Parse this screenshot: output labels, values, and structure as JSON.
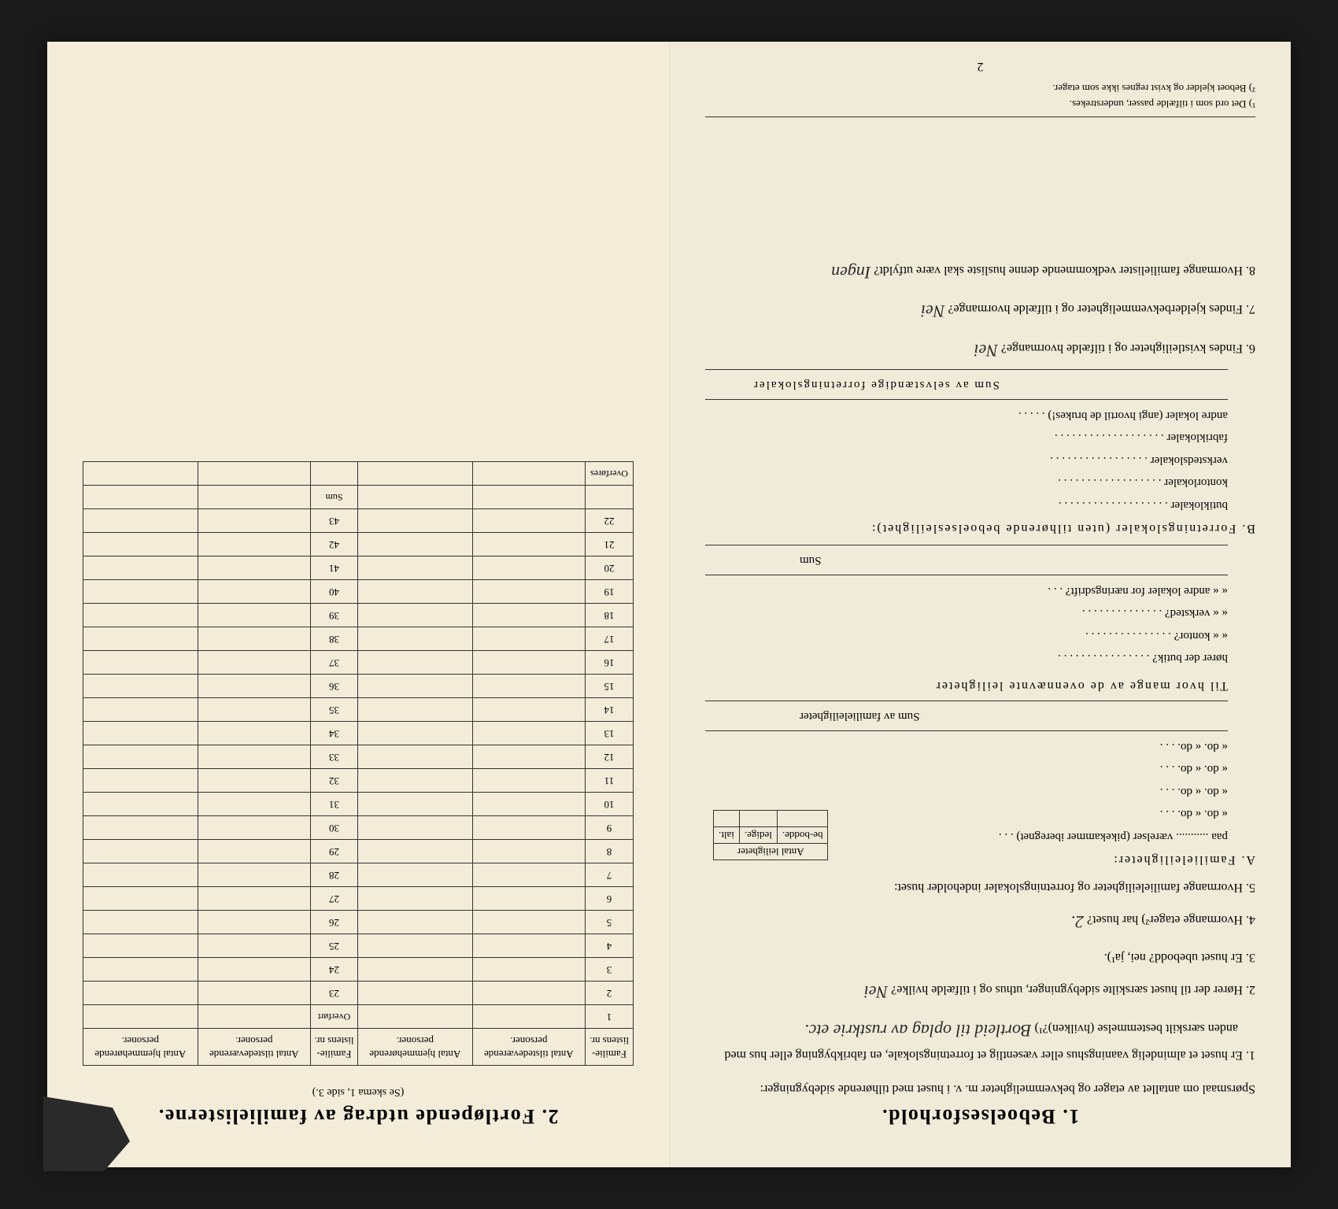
{
  "colors": {
    "paper": "#f0ebd8",
    "paper_right": "#f2ecd9",
    "background": "#1a1a1a",
    "ink": "#1a1a1a",
    "border": "#333333"
  },
  "left_page": {
    "title": "1.  Beboelsesforhold.",
    "intro": "Spørsmaal om antallet av etager og bekvemmeligheter m. v. i huset med tilhørende sidebygninger:",
    "q1": "1. Er huset et almindelig vaaningshus eller væsentlig et forretningslokale, en fabrikbygning eller hus med anden særskilt bestemmelse (hvilken)?¹) ",
    "q1_answer": "Bortleid til oplag av rustkrie etc.",
    "q2": "2. Hører der til huset særskilte sidebygninger, uthus og i tilfælde hvilke? ",
    "q2_answer": "Nei",
    "q3": "3. Er huset ubebodd?  nei,  ja¹).",
    "q4": "4. Hvormange etager²) har huset? ",
    "q4_answer": "2.",
    "q5": "5. Hvormange familieleiligheter og forretningslokaler indeholder huset:",
    "table_header": "Antal leiligheter",
    "table_cols": [
      "be-bodde.",
      "ledige.",
      "ialt."
    ],
    "sectionA": "A.  Familieleiligheter:",
    "a_line1": "paa ........... værelser (pikekammer iberegnet) . . .",
    "a_do": "«       do.       «               do.                    . . .",
    "a_sum": "Sum av familieleiligheter",
    "til_hvor": "Til hvor mange av de ovennævnte leiligheter",
    "butik": "hører der butik? . . . . . . . . . . . . . . . .",
    "kontor": "«      «   kontor? . . . . . . . . . . . . . . .",
    "verksted": "«      «   verksted? . . . . . . . . . . . . . .",
    "andre_lok": "«      «   andre lokaler for næringsdrift? . . .",
    "sum": "Sum",
    "sectionB": "B.  Forretningslokaler (uten tilhørende beboelsesleilighet):",
    "b_butik": "butiklokaler . . . . . . . . . . . . . . . . . . .",
    "b_kontor": "kontorlokaler . . . . . . . . . . . . . . . . . .",
    "b_verksted": "verkstedslokaler . . . . . . . . . . . . . . . . .",
    "b_fabrik": "fabriklokaler . . . . . . . . . . . . . . . . . . .",
    "b_andre": "andre lokaler (angi hvortil de brukes!) . . . . .",
    "b_sum": "Sum av selvstændige forretningslokaler",
    "q6": "6. Findes kvistleiligheter og i tilfælde hvormange? ",
    "q6_answer": "Nei",
    "q7": "7. Findes kjelderbekvemmeligheter og i tilfælde hvormange? ",
    "q7_answer": "Nei",
    "q8": "8. Hvormange familielister vedkommende denne husliste skal være utfyldt? ",
    "q8_answer": "Ingen",
    "footnote1": "¹) Det ord som i tilfælde passer, understrekes.",
    "footnote2": "²) Beboet kjelder og kvist regnes ikke som etager.",
    "page_num": "2"
  },
  "right_page": {
    "title": "2.  Fortløpende utdrag av familielisterne.",
    "subtitle": "(Se skema 1, side 3.)",
    "headers": {
      "col1": "Familie-listens nr.",
      "col2": "Antal tilstedeværende personer.",
      "col3": "Antal hjemmehørende personer.",
      "col4": "Familie-listens nr.",
      "col5": "Antal tilstedeværende personer.",
      "col6": "Antal hjemmehørende personer."
    },
    "overfort": "Overført",
    "overfores": "Overføres",
    "sum": "Sum",
    "rows_left": [
      "1",
      "2",
      "3",
      "4",
      "5",
      "6",
      "7",
      "8",
      "9",
      "10",
      "11",
      "12",
      "13",
      "14",
      "15",
      "16",
      "17",
      "18",
      "19",
      "20",
      "21",
      "22"
    ],
    "rows_right": [
      "23",
      "24",
      "25",
      "26",
      "27",
      "28",
      "29",
      "30",
      "31",
      "32",
      "33",
      "34",
      "35",
      "36",
      "37",
      "38",
      "39",
      "40",
      "41",
      "42",
      "43"
    ]
  }
}
